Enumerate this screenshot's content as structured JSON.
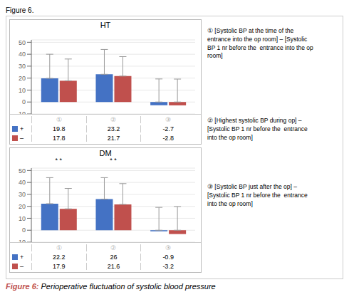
{
  "title": "Figure 6.",
  "caption": "Figure 6: Perioperative fluctuation of systolic blood pressure",
  "annotations": [
    "① [Systolic BP at the time of the\nentrance into the op room] – [Systolic\nBP 1 nr before the  entrance into the op\nroom]",
    "② [Highest systolic BP during op] –\n[Systolic BP 1 nr before the  entrance\ninto the op room]",
    "③ [Systolic BP just after the op] –\n[Systolic BP 1 nr before the  entrance\ninto the op room]"
  ],
  "chart_data": [
    {
      "type": "bar",
      "title": "HT",
      "categories": [
        "①",
        "②",
        "③"
      ],
      "series": [
        {
          "name": "+",
          "color": "#4472C4",
          "values": [
            19.8,
            23.2,
            -2.7
          ],
          "error_up": [
            20.2,
            20.8,
            19.3
          ]
        },
        {
          "name": "–",
          "color": "#C0504D",
          "values": [
            17.8,
            21.7,
            -2.8
          ],
          "error_up": [
            18.2,
            16.3,
            19.2
          ]
        }
      ],
      "ylim": [
        -10,
        52
      ],
      "yticks": [
        -10,
        0,
        10,
        20,
        30,
        40,
        50
      ],
      "grid": true,
      "data_labels": true,
      "tick_labels": "y"
    },
    {
      "type": "bar",
      "title": "DM",
      "categories": [
        "①",
        "②",
        "③"
      ],
      "series": [
        {
          "name": "+",
          "color": "#4472C4",
          "values": [
            22.2,
            26.0,
            -0.9
          ],
          "error_up": [
            21.8,
            18.0,
            19.1
          ]
        },
        {
          "name": "–",
          "color": "#C0504D",
          "values": [
            17.9,
            21.6,
            -3.2
          ],
          "error_up": [
            17.1,
            17.4,
            19.8
          ]
        }
      ],
      "significance": [
        "* *",
        "* *",
        null
      ],
      "ylim": [
        -10,
        52
      ],
      "yticks": [
        -10,
        0,
        10,
        20,
        30,
        40,
        50
      ],
      "grid": true,
      "data_labels": true,
      "tick_labels": "y"
    }
  ]
}
